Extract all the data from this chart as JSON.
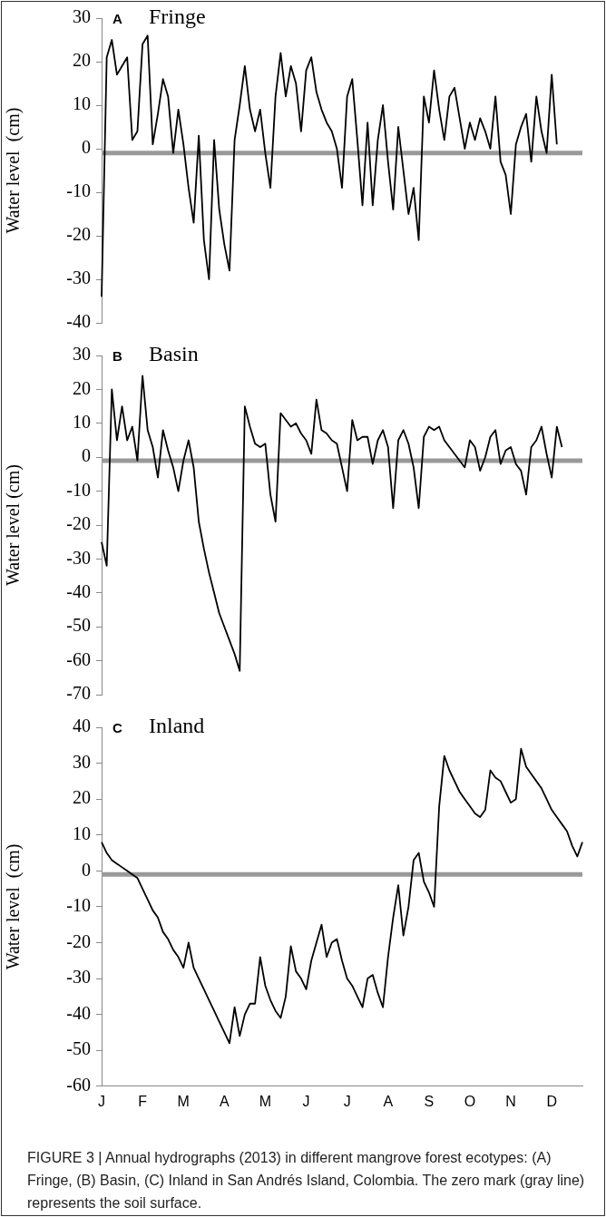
{
  "chart_data": [
    {
      "type": "line",
      "title": "Fringe",
      "ylabel": "Water level  (cm)",
      "annotations": [
        "A"
      ],
      "tick_labels": "y",
      "grid": false,
      "legend": false,
      "marker": "none",
      "line_style": "solid",
      "categories": [
        null,
        null,
        null,
        null,
        null,
        null,
        null,
        null,
        null,
        null,
        null,
        null,
        null,
        null,
        null,
        null,
        null,
        null,
        null,
        null,
        null,
        null,
        null,
        null,
        null,
        null,
        null,
        null,
        null,
        null,
        null,
        null,
        null,
        null,
        null,
        null,
        null,
        null,
        null,
        null,
        null,
        null,
        null,
        null,
        null,
        null,
        null,
        null,
        null,
        null,
        null,
        null,
        null,
        null,
        null,
        null,
        null,
        null,
        null,
        null,
        null,
        null,
        null,
        null,
        null,
        null,
        null,
        null,
        null,
        null,
        null,
        null,
        null,
        null,
        null,
        null,
        null,
        null,
        null,
        null,
        null,
        null,
        null,
        null,
        null,
        null,
        null,
        null,
        null,
        null,
        null,
        null,
        null,
        null,
        null
      ],
      "ylim": [
        -40,
        30
      ],
      "yticks": [
        -40,
        -30,
        -20,
        -10,
        0,
        10,
        20,
        30
      ],
      "ref_lines": [
        {
          "axis": "y",
          "value": -1,
          "label": null,
          "color": "#999999"
        }
      ],
      "series": [
        {
          "color": "#000000",
          "values": [
            -34,
            21,
            25,
            17,
            19,
            21,
            2,
            4,
            24,
            26,
            1,
            8,
            16,
            12,
            -1,
            9,
            1,
            -9,
            -17,
            3,
            -21,
            -30,
            2,
            -14,
            -22,
            -28,
            2,
            10,
            19,
            9,
            4,
            9,
            -1,
            -9,
            12,
            22,
            12,
            19,
            15,
            4,
            18,
            21,
            13,
            9,
            6,
            4,
            0,
            -9,
            12,
            16,
            2,
            -13,
            6,
            -13,
            2,
            10,
            -3,
            -14,
            5,
            -5,
            -15,
            -9,
            -21,
            12,
            6,
            18,
            9,
            2,
            12,
            14,
            7,
            0,
            6,
            2,
            7,
            4,
            0,
            12,
            -3,
            -6,
            -15,
            1,
            5,
            8,
            -3,
            12,
            4,
            -1,
            17,
            1,
            null,
            null,
            null,
            null,
            null
          ]
        }
      ]
    },
    {
      "type": "line",
      "title": "Basin",
      "ylabel": "Water level (cm)",
      "annotations": [
        "B"
      ],
      "tick_labels": "y",
      "grid": false,
      "legend": false,
      "marker": "none",
      "line_style": "solid",
      "categories": [
        null,
        null,
        null,
        null,
        null,
        null,
        null,
        null,
        null,
        null,
        null,
        null,
        null,
        null,
        null,
        null,
        null,
        null,
        null,
        null,
        null,
        null,
        null,
        null,
        null,
        null,
        null,
        null,
        null,
        null,
        null,
        null,
        null,
        null,
        null,
        null,
        null,
        null,
        null,
        null,
        null,
        null,
        null,
        null,
        null,
        null,
        null,
        null,
        null,
        null,
        null,
        null,
        null,
        null,
        null,
        null,
        null,
        null,
        null,
        null,
        null,
        null,
        null,
        null,
        null,
        null,
        null,
        null,
        null,
        null,
        null,
        null,
        null,
        null,
        null,
        null,
        null,
        null,
        null,
        null,
        null,
        null,
        null,
        null,
        null,
        null,
        null,
        null,
        null,
        null,
        null,
        null,
        null,
        null,
        null
      ],
      "ylim": [
        -70,
        30
      ],
      "yticks": [
        -70,
        -60,
        -50,
        -40,
        -30,
        -20,
        -10,
        0,
        10,
        20,
        30
      ],
      "ref_lines": [
        {
          "axis": "y",
          "value": -1,
          "label": null,
          "color": "#999999"
        }
      ],
      "series": [
        {
          "color": "#000000",
          "values": [
            -25,
            -32,
            20,
            5,
            15,
            5,
            9,
            -1,
            24,
            8,
            3,
            -6,
            8,
            2,
            -3,
            -10,
            -1,
            5,
            -3,
            -19,
            -27,
            -34,
            -40,
            -46,
            -50,
            -54,
            -58,
            -63,
            15,
            9,
            4,
            3,
            4,
            -11,
            -19,
            13,
            11,
            9,
            10,
            7,
            5,
            1,
            17,
            8,
            7,
            5,
            4,
            -3,
            -10,
            11,
            5,
            6,
            6,
            -2,
            5,
            8,
            3,
            -15,
            5,
            8,
            4,
            -3,
            -15,
            6,
            9,
            8,
            9,
            5,
            3,
            1,
            -1,
            -3,
            5,
            3,
            -4,
            0,
            6,
            8,
            -2,
            2,
            3,
            -2,
            -4,
            -11,
            3,
            5,
            9,
            1,
            -6,
            9,
            3,
            null,
            null,
            null,
            null
          ]
        }
      ]
    },
    {
      "type": "line",
      "title": "Inland",
      "ylabel": "Water level  (cm)",
      "annotations": [
        "C",
        "FIGURE 3 | Annual hydrographs (2013) in different mangrove forest ecotypes: (A) Fringe, (B) Basin, (C) Inland in San Andrés Island, Colombia. The zero mark (gray line) represents the soil surface."
      ],
      "grid": false,
      "legend": false,
      "marker": "none",
      "line_style": "solid",
      "categories": [
        "J",
        null,
        null,
        null,
        null,
        null,
        null,
        null,
        "F",
        null,
        null,
        null,
        null,
        null,
        null,
        null,
        "M",
        null,
        null,
        null,
        null,
        null,
        null,
        null,
        "A",
        null,
        null,
        null,
        null,
        null,
        null,
        null,
        "M",
        null,
        null,
        null,
        null,
        null,
        null,
        null,
        "J",
        null,
        null,
        null,
        null,
        null,
        null,
        null,
        "J",
        null,
        null,
        null,
        null,
        null,
        null,
        null,
        "A",
        null,
        null,
        null,
        null,
        null,
        null,
        null,
        "S",
        null,
        null,
        null,
        null,
        null,
        null,
        null,
        "O",
        null,
        null,
        null,
        null,
        null,
        null,
        null,
        "N",
        null,
        null,
        null,
        null,
        null,
        null,
        null,
        "D",
        null,
        null,
        null,
        null,
        null,
        null
      ],
      "ylim": [
        -60,
        40
      ],
      "yticks": [
        -60,
        -50,
        -40,
        -30,
        -20,
        -10,
        0,
        10,
        20,
        30,
        40
      ],
      "ref_lines": [
        {
          "axis": "y",
          "value": -1,
          "label": null,
          "color": "#999999"
        }
      ],
      "series": [
        {
          "color": "#000000",
          "values": [
            8,
            5,
            3,
            2,
            1,
            0,
            -1,
            -2,
            -5,
            -8,
            -11,
            -13,
            -17,
            -19,
            -22,
            -24,
            -27,
            -20,
            -27,
            -30,
            -33,
            -36,
            -39,
            -42,
            -45,
            -48,
            -38,
            -46,
            -40,
            -37,
            -37,
            -24,
            -32,
            -36,
            -39,
            -41,
            -35,
            -21,
            -28,
            -30,
            -33,
            -25,
            -20,
            -15,
            -24,
            -20,
            -19,
            -25,
            -30,
            -32,
            -35,
            -38,
            -30,
            -29,
            -34,
            -38,
            -24,
            -13,
            -4,
            -18,
            -10,
            3,
            5,
            -3,
            -6,
            -10,
            18,
            32,
            28,
            25,
            22,
            20,
            18,
            16,
            15,
            17,
            28,
            26,
            25,
            22,
            19,
            20,
            34,
            29,
            27,
            25,
            23,
            20,
            17,
            15,
            13,
            11,
            7,
            4,
            8
          ]
        }
      ]
    }
  ]
}
